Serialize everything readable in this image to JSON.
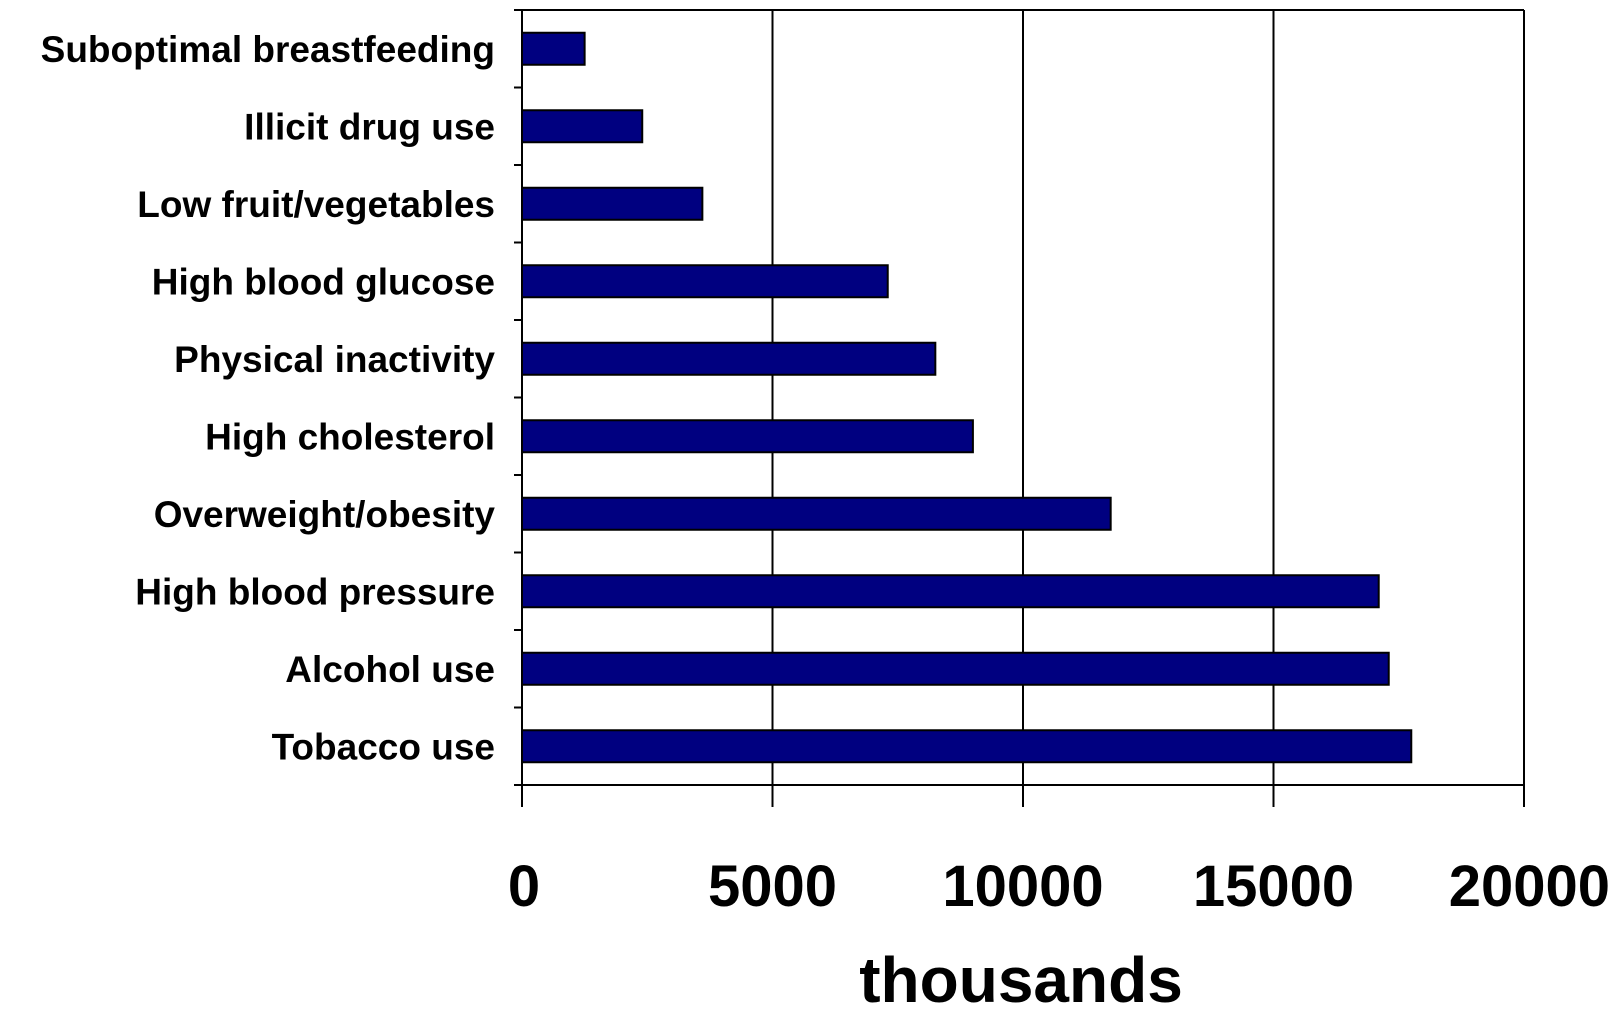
{
  "chart_data": {
    "type": "bar",
    "orientation": "horizontal",
    "title": "",
    "xlabel": "thousands",
    "ylabel": "",
    "categories": [
      "Suboptimal breastfeeding",
      "Illicit drug use",
      "Low fruit/vegetables",
      "High blood glucose",
      "Physical inactivity",
      "High cholesterol",
      "Overweight/obesity",
      "High blood pressure",
      "Alcohol use",
      "Tobacco use"
    ],
    "values": [
      1250,
      2400,
      3600,
      7300,
      8250,
      9000,
      11750,
      17100,
      17300,
      17750
    ],
    "xlim": [
      0,
      20000
    ],
    "xticks": [
      0,
      5000,
      10000,
      15000,
      20000
    ],
    "xtick_labels": [
      "0",
      "5000",
      "10000",
      "15000",
      "20000"
    ],
    "grid": "vertical",
    "legend": "none",
    "colors": {
      "bar_fill": "#000080",
      "bar_stroke": "#000000",
      "axis": "#000000"
    }
  }
}
